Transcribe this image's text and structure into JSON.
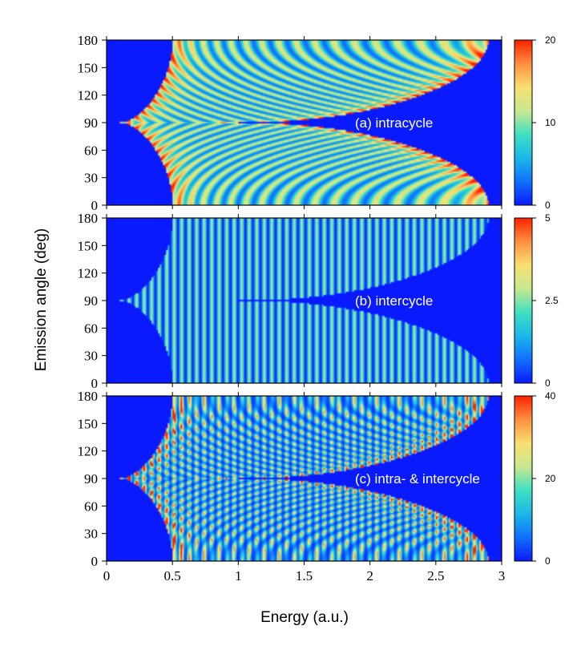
{
  "chart_data": {
    "type": "heatmap",
    "xlabel": "Energy (a.u.)",
    "ylabel": "Emission angle (deg)",
    "xlim": [
      0,
      3
    ],
    "ylim": [
      0,
      180
    ],
    "x_ticks": [
      "0",
      "0.5",
      "1",
      "1.5",
      "2",
      "2.5",
      "3"
    ],
    "y_ticks": [
      "0",
      "30",
      "60",
      "90",
      "120",
      "150",
      "180"
    ],
    "colormap": [
      "#0a1aff",
      "#1070ff",
      "#1ab8e8",
      "#40e0c0",
      "#c8e890",
      "#f8e070",
      "#ff9040",
      "#ff2000"
    ],
    "panels": [
      {
        "label": "(a) intracycle",
        "pattern": "intracycle",
        "colorbar_range": [
          0,
          20
        ],
        "colorbar_ticks": [
          "0",
          "10",
          "20"
        ]
      },
      {
        "label": "(b) intercycle",
        "pattern": "intercycle",
        "colorbar_range": [
          0,
          5
        ],
        "colorbar_ticks": [
          "0",
          "2.5",
          "5"
        ]
      },
      {
        "label": "(c) intra- & intercycle",
        "pattern": "combined",
        "colorbar_range": [
          0,
          40
        ],
        "colorbar_ticks": [
          "0",
          "20",
          "40"
        ]
      }
    ]
  }
}
